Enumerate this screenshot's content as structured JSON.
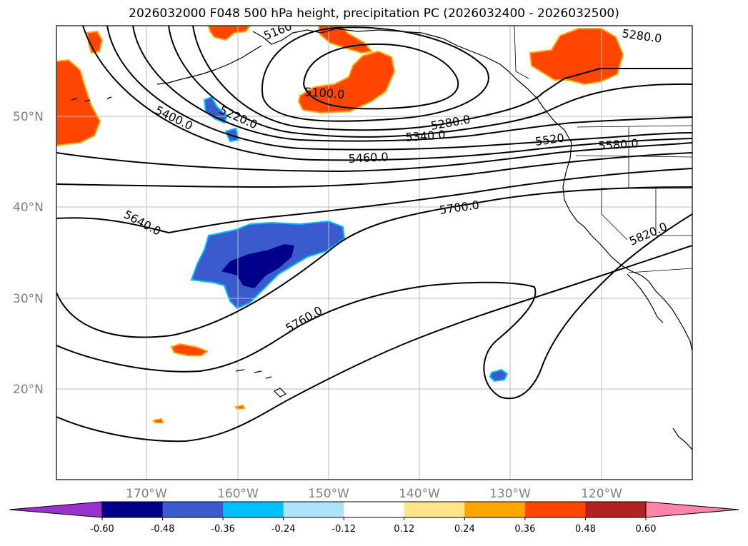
{
  "title": "2026032000 F048 500 hPa height, precipitation PC (2026032400 - 2026032500)",
  "axes": {
    "lat_labels": [
      "50°N",
      "40°N",
      "30°N",
      "20°N"
    ],
    "lon_labels": [
      "170°W",
      "160°W",
      "150°W",
      "140°W",
      "130°W",
      "120°W"
    ]
  },
  "contour_labels": [
    "5100.0",
    "5160",
    "5220.0",
    "5280.0",
    "5280.0",
    "5340.0",
    "5400.0",
    "5460.0",
    "5520",
    "5580.0",
    "5640.0",
    "5700.0",
    "5760.0",
    "5820.0"
  ],
  "colorbar": {
    "colors": [
      "#9932cc",
      "#00008b",
      "#3a5bcd",
      "#00bfff",
      "#aee2f8",
      "#ffffff",
      "#ffe58a",
      "#ffa500",
      "#ff4500",
      "#b22222",
      "#ff85a8"
    ],
    "tick_labels": [
      "-0.60",
      "-0.48",
      "-0.36",
      "-0.24",
      "-0.12",
      "0.12",
      "0.24",
      "0.36",
      "0.48",
      "0.60"
    ]
  }
}
